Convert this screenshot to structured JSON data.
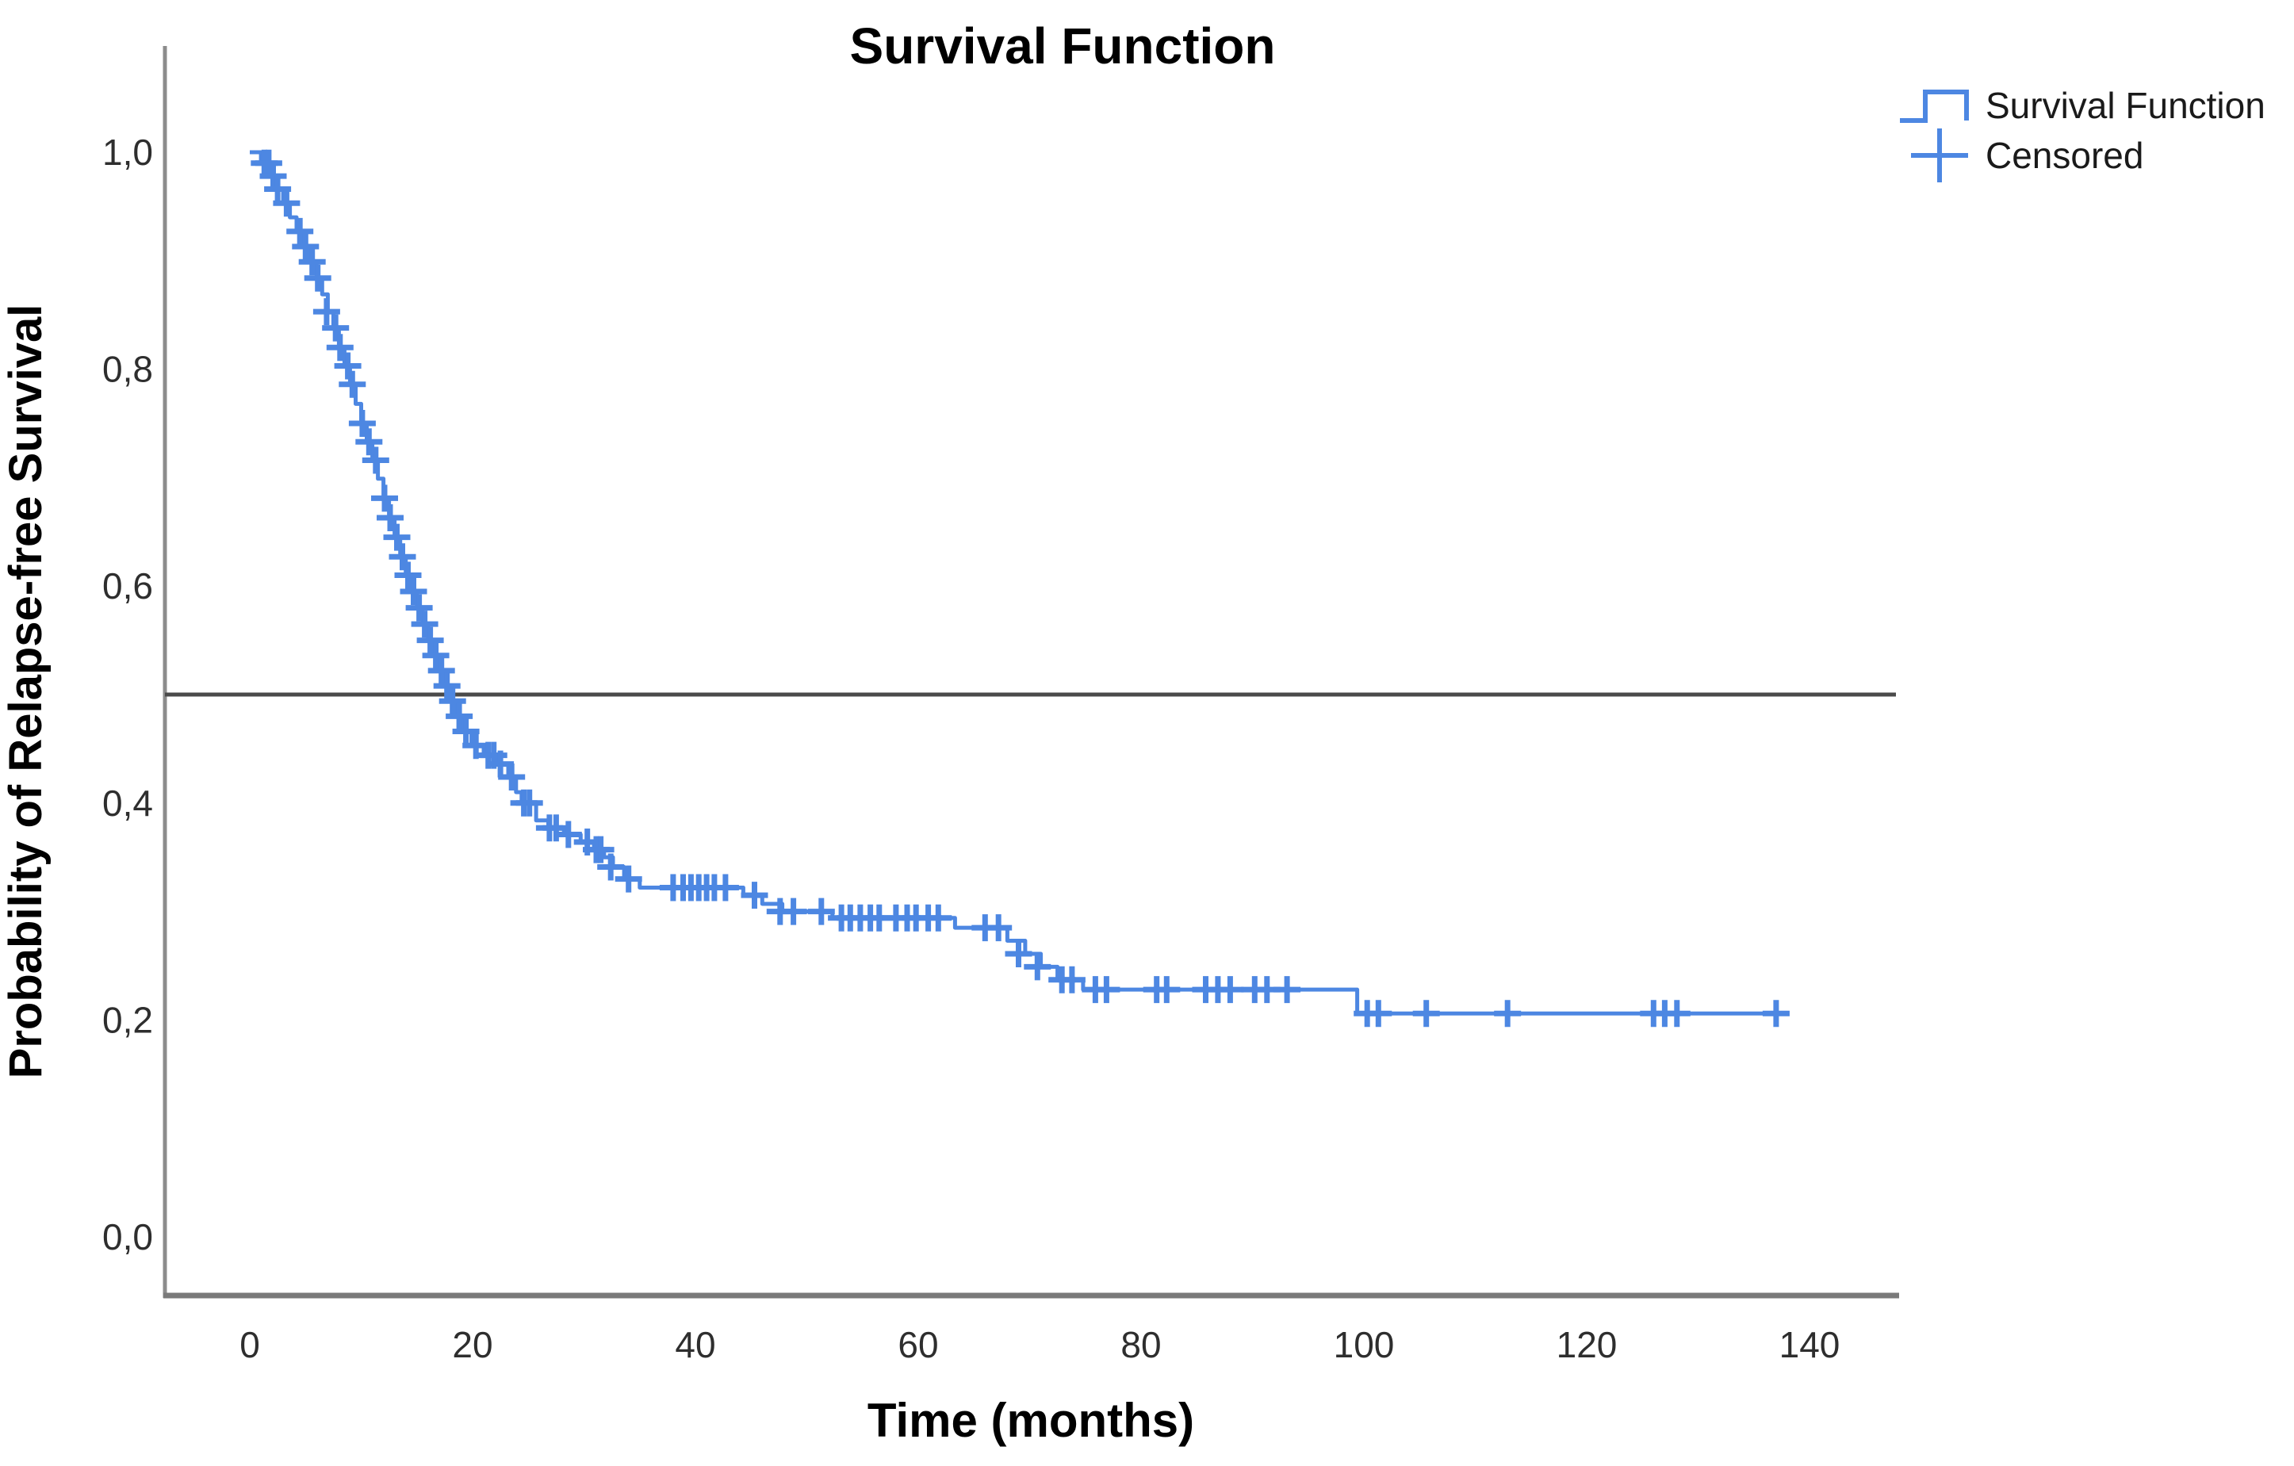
{
  "window": {
    "title": "Survival Function"
  },
  "colors": {
    "curve": "#4D87E2",
    "censor_marks": "#4D87E2",
    "reference_line": "#4A4A4A",
    "axis_line": "#8C8C8C",
    "axis_line_bottom": "#7A7A7A",
    "title_text": "#000000",
    "tick_text": "#2E2E2E",
    "background": "#FFFFFF"
  },
  "legend": {
    "items": [
      {
        "label": "Survival Function",
        "marker": "step-line-icon"
      },
      {
        "label": "Censored",
        "marker": "plus-icon"
      }
    ]
  },
  "chart_data": {
    "type": "line",
    "step": true,
    "title": "Survival Function",
    "xlabel": "Time (months)",
    "ylabel": "Probability of Relapse-free Survival",
    "xlim": [
      -7.5,
      148
    ],
    "ylim": [
      0,
      1.1
    ],
    "grid": false,
    "legend_position": "top-right",
    "x_ticks": {
      "values": [
        0,
        20,
        40,
        60,
        80,
        100,
        120,
        140
      ],
      "labels": [
        "0",
        "20",
        "40",
        "60",
        "80",
        "100",
        "120",
        "140"
      ]
    },
    "y_ticks": {
      "values": [
        1.0,
        0.8,
        0.6,
        0.4,
        0.2,
        0.0
      ],
      "labels": [
        "1,0",
        "0,8",
        "0,6",
        "0,4",
        "0,2",
        "0,0"
      ]
    },
    "reference_line_y": 0.5,
    "median_survival_months": 18.1,
    "series": [
      {
        "name": "Survival Function",
        "start": [
          0,
          1.0
        ],
        "end_time": 138.2,
        "final_survival": 0.206,
        "points": [
          [
            1.0,
            0.99
          ],
          [
            1.8,
            0.978
          ],
          [
            2.4,
            0.966
          ],
          [
            3.0,
            0.953
          ],
          [
            3.6,
            0.94
          ],
          [
            4.2,
            0.927
          ],
          [
            4.8,
            0.913
          ],
          [
            5.4,
            0.899
          ],
          [
            6.0,
            0.884
          ],
          [
            6.5,
            0.869
          ],
          [
            7.0,
            0.853
          ],
          [
            7.5,
            0.838
          ],
          [
            8.0,
            0.82
          ],
          [
            8.5,
            0.803
          ],
          [
            9.0,
            0.786
          ],
          [
            9.5,
            0.768
          ],
          [
            10.0,
            0.75
          ],
          [
            10.5,
            0.733
          ],
          [
            11.0,
            0.716
          ],
          [
            11.5,
            0.699
          ],
          [
            12.0,
            0.681
          ],
          [
            12.5,
            0.663
          ],
          [
            13.0,
            0.645
          ],
          [
            13.5,
            0.627
          ],
          [
            14.0,
            0.61
          ],
          [
            14.5,
            0.595
          ],
          [
            15.0,
            0.58
          ],
          [
            15.5,
            0.565
          ],
          [
            16.0,
            0.55
          ],
          [
            16.5,
            0.536
          ],
          [
            17.0,
            0.522
          ],
          [
            17.5,
            0.508
          ],
          [
            18.0,
            0.494
          ],
          [
            18.6,
            0.48
          ],
          [
            19.2,
            0.466
          ],
          [
            19.9,
            0.453
          ],
          [
            21.0,
            0.444
          ],
          [
            22.2,
            0.436
          ],
          [
            23.2,
            0.424
          ],
          [
            23.9,
            0.41
          ],
          [
            24.4,
            0.4
          ],
          [
            25.7,
            0.384
          ],
          [
            26.8,
            0.377
          ],
          [
            28.2,
            0.371
          ],
          [
            29.7,
            0.364
          ],
          [
            30.9,
            0.357
          ],
          [
            31.8,
            0.35
          ],
          [
            32.6,
            0.341
          ],
          [
            33.6,
            0.33
          ],
          [
            35.0,
            0.322
          ],
          [
            44.3,
            0.315
          ],
          [
            46.0,
            0.307
          ],
          [
            47.8,
            0.3
          ],
          [
            52.3,
            0.294
          ],
          [
            63.3,
            0.285
          ],
          [
            68.0,
            0.273
          ],
          [
            69.6,
            0.261
          ],
          [
            71.0,
            0.249
          ],
          [
            72.5,
            0.237
          ],
          [
            74.8,
            0.228
          ],
          [
            99.4,
            0.206
          ]
        ]
      }
    ],
    "censored": [
      [
        1.3,
        0.99
      ],
      [
        1.7,
        0.99
      ],
      [
        2.1,
        0.978
      ],
      [
        2.5,
        0.966
      ],
      [
        3.3,
        0.953
      ],
      [
        4.5,
        0.927
      ],
      [
        5.0,
        0.913
      ],
      [
        5.6,
        0.899
      ],
      [
        6.1,
        0.884
      ],
      [
        6.9,
        0.853
      ],
      [
        7.7,
        0.838
      ],
      [
        8.1,
        0.82
      ],
      [
        8.8,
        0.803
      ],
      [
        9.2,
        0.786
      ],
      [
        10.1,
        0.75
      ],
      [
        10.7,
        0.733
      ],
      [
        11.3,
        0.716
      ],
      [
        12.1,
        0.681
      ],
      [
        12.6,
        0.663
      ],
      [
        13.2,
        0.645
      ],
      [
        13.7,
        0.627
      ],
      [
        14.2,
        0.61
      ],
      [
        14.7,
        0.595
      ],
      [
        15.2,
        0.58
      ],
      [
        15.7,
        0.565
      ],
      [
        16.2,
        0.55
      ],
      [
        16.7,
        0.536
      ],
      [
        17.2,
        0.522
      ],
      [
        17.7,
        0.508
      ],
      [
        18.2,
        0.494
      ],
      [
        18.8,
        0.48
      ],
      [
        19.4,
        0.466
      ],
      [
        20.3,
        0.453
      ],
      [
        21.4,
        0.444
      ],
      [
        21.9,
        0.444
      ],
      [
        22.5,
        0.436
      ],
      [
        23.5,
        0.424
      ],
      [
        24.6,
        0.4
      ],
      [
        25.1,
        0.4
      ],
      [
        26.9,
        0.377
      ],
      [
        27.5,
        0.377
      ],
      [
        28.6,
        0.371
      ],
      [
        30.3,
        0.364
      ],
      [
        31.1,
        0.357
      ],
      [
        31.5,
        0.357
      ],
      [
        32.4,
        0.341
      ],
      [
        34.0,
        0.33
      ],
      [
        38.0,
        0.322
      ],
      [
        38.9,
        0.322
      ],
      [
        39.6,
        0.322
      ],
      [
        40.3,
        0.322
      ],
      [
        41.0,
        0.322
      ],
      [
        41.7,
        0.322
      ],
      [
        42.7,
        0.322
      ],
      [
        45.3,
        0.315
      ],
      [
        47.6,
        0.3
      ],
      [
        48.8,
        0.3
      ],
      [
        51.3,
        0.3
      ],
      [
        53.1,
        0.294
      ],
      [
        53.9,
        0.294
      ],
      [
        54.8,
        0.294
      ],
      [
        55.7,
        0.294
      ],
      [
        56.5,
        0.294
      ],
      [
        58.0,
        0.294
      ],
      [
        59.0,
        0.294
      ],
      [
        59.8,
        0.294
      ],
      [
        60.9,
        0.294
      ],
      [
        61.8,
        0.294
      ],
      [
        66.0,
        0.285
      ],
      [
        67.2,
        0.285
      ],
      [
        69.0,
        0.261
      ],
      [
        70.7,
        0.249
      ],
      [
        72.9,
        0.237
      ],
      [
        73.8,
        0.237
      ],
      [
        75.9,
        0.228
      ],
      [
        76.9,
        0.228
      ],
      [
        81.4,
        0.228
      ],
      [
        82.3,
        0.228
      ],
      [
        85.8,
        0.228
      ],
      [
        86.9,
        0.228
      ],
      [
        88.0,
        0.228
      ],
      [
        90.2,
        0.228
      ],
      [
        91.3,
        0.228
      ],
      [
        93.1,
        0.228
      ],
      [
        100.3,
        0.206
      ],
      [
        101.3,
        0.206
      ],
      [
        105.6,
        0.206
      ],
      [
        112.9,
        0.206
      ],
      [
        126.0,
        0.206
      ],
      [
        127.0,
        0.206
      ],
      [
        128.1,
        0.206
      ],
      [
        137.0,
        0.206
      ]
    ]
  }
}
